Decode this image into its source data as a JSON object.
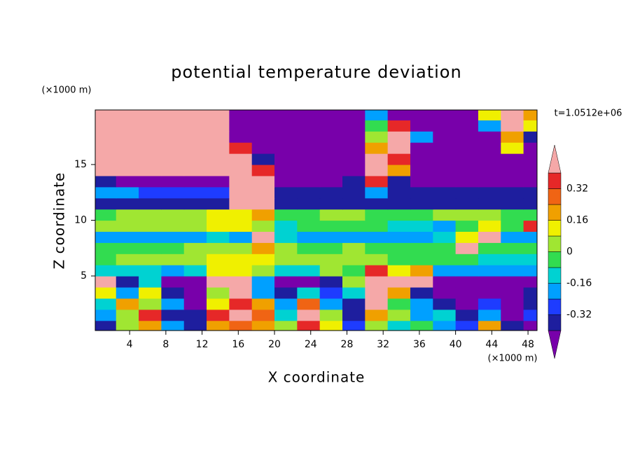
{
  "chart_data": {
    "type": "contour",
    "title": "potential temperature deviation",
    "x_label": "X coordinate",
    "y_label": "Z coordinate",
    "x_unit": "(×1000 m)",
    "y_unit": "(×1000 m)",
    "time_label": "t=1.0512e+06",
    "xlim": [
      0.2,
      49
    ],
    "ylim": [
      0.1,
      19.9
    ],
    "xticks": [
      4,
      8,
      12,
      16,
      20,
      24,
      28,
      32,
      36,
      40,
      44,
      48
    ],
    "yticks": [
      5,
      10,
      15
    ],
    "levels": [
      -0.4,
      -0.32,
      -0.24,
      -0.16,
      -0.08,
      0,
      0.08,
      0.16,
      0.24,
      0.32,
      0.4
    ],
    "colors": [
      "#7800aa",
      "#1e1e9e",
      "#1e3cff",
      "#00a0ff",
      "#00d2d2",
      "#32dc50",
      "#a0e632",
      "#f0f000",
      "#f0a000",
      "#f06414",
      "#e62828",
      "#f5a8a8"
    ],
    "colorbar_ticks": [
      0.32,
      0.16,
      0,
      -0.16,
      -0.32
    ],
    "x": [
      1.25,
      3.75,
      6.25,
      8.75,
      11.25,
      13.75,
      16.25,
      18.75,
      21.25,
      23.75,
      26.25,
      28.75,
      31.25,
      33.75,
      36.25,
      38.75,
      41.25,
      43.75,
      46.25,
      48.75
    ],
    "z": [
      0.5,
      1.5,
      2.5,
      3.5,
      4.5,
      5.5,
      6.5,
      7.5,
      8.5,
      9.5,
      10.5,
      11.5,
      12.5,
      13.5,
      14.5,
      15.5,
      16.5,
      17.5,
      18.5,
      19.5
    ],
    "values": [
      [
        -0.36,
        0.04,
        0.2,
        -0.2,
        -0.36,
        0.2,
        0.28,
        0.2,
        0.04,
        0.36,
        0.12,
        -0.28,
        0.04,
        -0.12,
        -0.04,
        -0.2,
        -0.28,
        0.2,
        -0.36,
        -0.5
      ],
      [
        -0.2,
        0.04,
        0.36,
        -0.36,
        -0.36,
        0.36,
        0.5,
        0.28,
        -0.12,
        0.5,
        0.04,
        -0.36,
        0.2,
        0.04,
        -0.2,
        -0.12,
        -0.36,
        -0.2,
        -0.5,
        -0.28
      ],
      [
        -0.12,
        0.2,
        0.04,
        -0.2,
        -0.5,
        0.12,
        0.36,
        0.2,
        -0.2,
        0.28,
        -0.2,
        -0.36,
        0.5,
        -0.04,
        -0.2,
        -0.36,
        -0.5,
        -0.28,
        -0.5,
        -0.36
      ],
      [
        0.12,
        -0.2,
        0.12,
        -0.36,
        -0.5,
        0.04,
        0.5,
        -0.2,
        -0.36,
        -0.12,
        -0.28,
        -0.12,
        0.5,
        0.2,
        -0.36,
        -0.5,
        -0.5,
        -0.5,
        -0.5,
        -0.36
      ],
      [
        0.5,
        -0.36,
        -0.12,
        -0.5,
        -0.5,
        0.5,
        0.5,
        -0.2,
        -0.5,
        -0.5,
        -0.36,
        0.04,
        0.5,
        0.5,
        0.5,
        -0.5,
        -0.5,
        -0.5,
        -0.5,
        -0.5
      ],
      [
        -0.12,
        -0.12,
        -0.12,
        -0.2,
        -0.12,
        0.12,
        0.12,
        0.04,
        -0.12,
        -0.12,
        0.04,
        -0.04,
        0.36,
        0.12,
        0.2,
        -0.2,
        -0.2,
        -0.2,
        -0.2,
        -0.2
      ],
      [
        -0.04,
        0.04,
        0.04,
        0.04,
        0.04,
        0.12,
        0.12,
        0.12,
        0.04,
        0.04,
        0.04,
        0.04,
        0.04,
        -0.04,
        -0.04,
        -0.04,
        -0.04,
        -0.12,
        -0.12,
        -0.12
      ],
      [
        -0.04,
        -0.04,
        -0.04,
        -0.04,
        0.04,
        0.04,
        0.04,
        0.2,
        0.04,
        -0.04,
        -0.04,
        0.04,
        -0.04,
        -0.04,
        -0.04,
        -0.04,
        0.5,
        -0.04,
        -0.04,
        -0.04
      ],
      [
        -0.2,
        -0.2,
        -0.2,
        -0.2,
        -0.2,
        -0.12,
        -0.2,
        0.5,
        -0.12,
        -0.2,
        -0.2,
        -0.2,
        -0.2,
        -0.2,
        -0.2,
        -0.12,
        0.12,
        0.5,
        -0.2,
        -0.2
      ],
      [
        0.04,
        0.04,
        0.04,
        0.04,
        0.04,
        0.12,
        0.12,
        0.04,
        -0.12,
        -0.04,
        -0.04,
        -0.04,
        -0.04,
        -0.12,
        -0.12,
        -0.2,
        -0.04,
        0.12,
        -0.04,
        0.36
      ],
      [
        -0.04,
        0.04,
        0.04,
        0.04,
        0.04,
        0.12,
        0.12,
        0.2,
        -0.04,
        -0.04,
        0.04,
        0.04,
        -0.04,
        -0.04,
        -0.04,
        0.04,
        0.04,
        0.04,
        -0.04,
        -0.04
      ],
      [
        -0.36,
        -0.36,
        -0.36,
        -0.36,
        -0.36,
        -0.36,
        0.5,
        0.5,
        -0.36,
        -0.36,
        -0.36,
        -0.36,
        -0.36,
        -0.36,
        -0.36,
        -0.36,
        -0.36,
        -0.36,
        -0.36,
        -0.36
      ],
      [
        -0.2,
        -0.2,
        -0.28,
        -0.28,
        -0.28,
        -0.28,
        0.5,
        0.5,
        -0.36,
        -0.36,
        -0.36,
        -0.36,
        -0.2,
        -0.36,
        -0.36,
        -0.36,
        -0.36,
        -0.36,
        -0.36,
        -0.36
      ],
      [
        -0.36,
        -0.5,
        -0.5,
        -0.5,
        -0.5,
        -0.5,
        0.5,
        0.5,
        -0.5,
        -0.5,
        -0.5,
        -0.36,
        0.36,
        -0.36,
        -0.5,
        -0.5,
        -0.5,
        -0.5,
        -0.5,
        -0.5
      ],
      [
        0.5,
        0.5,
        0.5,
        0.5,
        0.5,
        0.5,
        0.5,
        0.36,
        -0.5,
        -0.5,
        -0.5,
        -0.5,
        0.5,
        0.2,
        -0.5,
        -0.5,
        -0.5,
        -0.5,
        -0.5,
        -0.5
      ],
      [
        0.5,
        0.5,
        0.5,
        0.5,
        0.5,
        0.5,
        0.5,
        -0.36,
        -0.5,
        -0.5,
        -0.5,
        -0.5,
        0.5,
        0.36,
        -0.5,
        -0.5,
        -0.5,
        -0.5,
        -0.5,
        -0.5
      ],
      [
        0.5,
        0.5,
        0.5,
        0.5,
        0.5,
        0.5,
        0.36,
        -0.5,
        -0.5,
        -0.5,
        -0.5,
        -0.5,
        0.2,
        0.5,
        -0.5,
        -0.5,
        -0.5,
        -0.5,
        0.12,
        -0.5
      ],
      [
        0.5,
        0.5,
        0.5,
        0.5,
        0.5,
        0.5,
        -0.5,
        -0.5,
        -0.5,
        -0.5,
        -0.5,
        -0.5,
        0.04,
        0.5,
        -0.2,
        -0.5,
        -0.5,
        -0.5,
        0.2,
        -0.36
      ],
      [
        0.5,
        0.5,
        0.5,
        0.5,
        0.5,
        0.5,
        -0.5,
        -0.5,
        -0.5,
        -0.5,
        -0.5,
        -0.5,
        -0.04,
        0.36,
        -0.5,
        -0.5,
        -0.5,
        -0.2,
        0.5,
        0.12
      ],
      [
        0.5,
        0.5,
        0.5,
        0.5,
        0.5,
        0.5,
        -0.5,
        -0.5,
        -0.5,
        -0.5,
        -0.5,
        -0.5,
        -0.2,
        -0.5,
        -0.5,
        -0.5,
        -0.5,
        0.12,
        0.5,
        0.2
      ]
    ]
  }
}
